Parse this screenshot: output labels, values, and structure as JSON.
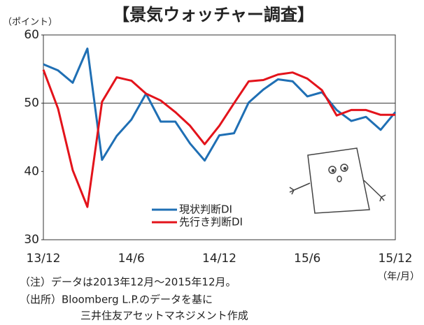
{
  "chart_data": {
    "type": "line",
    "title": "【景気ウォッチャー調査】",
    "y_unit": "（ポイント）",
    "x_unit": "（年/月）",
    "categories": [
      "13/12",
      null,
      null,
      null,
      null,
      null,
      "14/6",
      null,
      null,
      null,
      null,
      null,
      "14/12",
      null,
      null,
      null,
      null,
      null,
      "15/6",
      null,
      null,
      null,
      null,
      null,
      "15/12"
    ],
    "series": [
      {
        "name": "現状判断DI",
        "color": "#1f6fb4",
        "values": [
          55.7,
          54.8,
          53.0,
          58.0,
          41.7,
          45.2,
          47.6,
          51.4,
          47.3,
          47.3,
          44.1,
          41.6,
          45.3,
          45.6,
          50.1,
          52.0,
          53.5,
          53.2,
          51.0,
          51.6,
          49.0,
          47.4,
          48.0,
          46.1,
          48.7
        ]
      },
      {
        "name": "先行き判断DI",
        "color": "#e3131b",
        "values": [
          54.9,
          49.2,
          40.2,
          34.8,
          50.2,
          53.8,
          53.3,
          51.4,
          50.4,
          48.7,
          46.7,
          44.0,
          46.7,
          50.0,
          53.2,
          53.4,
          54.2,
          54.5,
          53.6,
          51.9,
          48.2,
          49.0,
          49.0,
          48.3,
          48.3
        ]
      }
    ],
    "ylim": [
      30,
      60
    ],
    "yticks": [
      30,
      40,
      50,
      60
    ],
    "reference_line": 50,
    "notes": [
      "（注）データは2013年12月～2015年12月。",
      "（出所）Bloomberg L.P.のデータを基に",
      "三井住友アセットマネジメント作成"
    ]
  }
}
